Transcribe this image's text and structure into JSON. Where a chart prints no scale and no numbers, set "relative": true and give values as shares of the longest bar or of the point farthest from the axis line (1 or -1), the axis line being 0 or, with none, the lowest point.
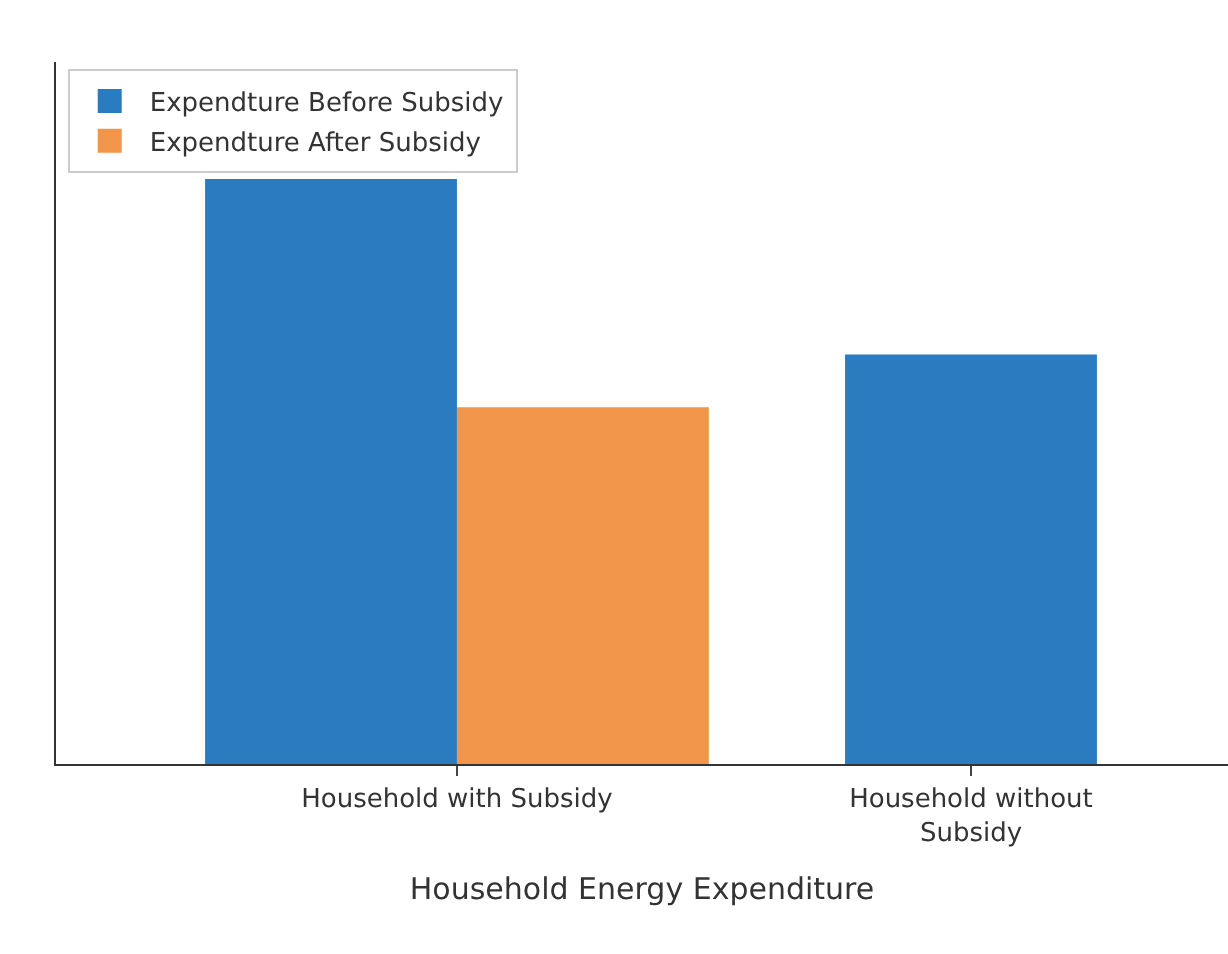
{
  "chart_data": {
    "type": "bar",
    "relative": true,
    "xlabel": "Household Energy Expenditure",
    "categories": [
      "Household with Subsidy",
      "Household without Subsidy"
    ],
    "series": [
      {
        "name": "Expendture Before Subsidy",
        "color": "#2b7bc0",
        "values": [
          1,
          0.7
        ]
      },
      {
        "name": "Expendture After Subsidy",
        "color": "#f0954a",
        "values": [
          0.61,
          null
        ]
      }
    ],
    "legend": "top left"
  }
}
